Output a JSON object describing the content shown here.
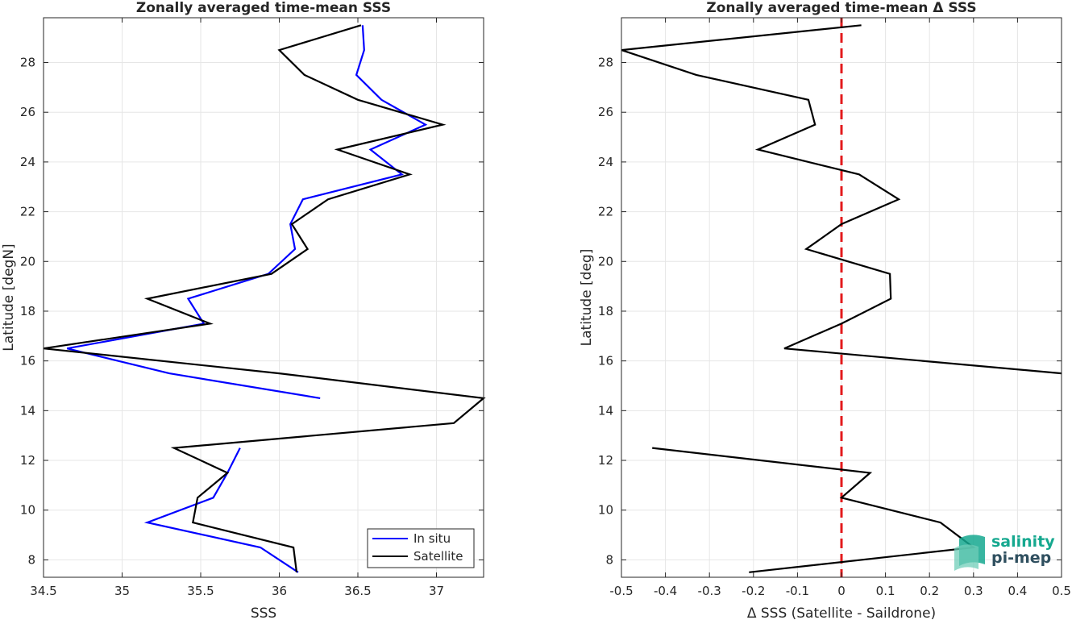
{
  "chart_data": [
    {
      "type": "line",
      "title": "Zonally averaged time-mean SSS",
      "xlabel": "SSS",
      "ylabel": "Latitude [degN]",
      "xlim": [
        34.5,
        37.3
      ],
      "ylim": [
        7.3,
        29.8
      ],
      "xticks": [
        "34.5",
        "35",
        "35.5",
        "36",
        "36.5",
        "37"
      ],
      "yticks": [
        "8",
        "10",
        "12",
        "14",
        "16",
        "18",
        "20",
        "22",
        "24",
        "26",
        "28"
      ],
      "grid": true,
      "legend_position": "bottom-right",
      "series": [
        {
          "name": "In situ",
          "color": "#0000ff",
          "points": [
            [
              36.53,
              29.5
            ],
            [
              36.54,
              28.5
            ],
            [
              36.49,
              27.5
            ],
            [
              36.65,
              26.5
            ],
            [
              36.93,
              25.5
            ],
            [
              36.58,
              24.5
            ],
            [
              36.78,
              23.5
            ],
            [
              36.15,
              22.5
            ],
            [
              36.07,
              21.5
            ],
            [
              36.1,
              20.5
            ],
            [
              35.93,
              19.5
            ],
            [
              35.42,
              18.5
            ],
            [
              35.52,
              17.5
            ],
            [
              34.65,
              16.5
            ],
            [
              35.3,
              15.5
            ],
            [
              36.26,
              14.5
            ],
            [
              null,
              null
            ],
            [
              35.75,
              12.5
            ],
            [
              35.67,
              11.5
            ],
            [
              35.58,
              10.5
            ],
            [
              35.16,
              9.5
            ],
            [
              35.88,
              8.5
            ],
            [
              36.12,
              7.5
            ]
          ]
        },
        {
          "name": "Satellite",
          "color": "#000000",
          "points": [
            [
              36.52,
              29.5
            ],
            [
              36.0,
              28.5
            ],
            [
              36.16,
              27.5
            ],
            [
              36.5,
              26.5
            ],
            [
              37.04,
              25.5
            ],
            [
              36.37,
              24.5
            ],
            [
              36.83,
              23.5
            ],
            [
              36.31,
              22.5
            ],
            [
              36.08,
              21.5
            ],
            [
              36.18,
              20.5
            ],
            [
              35.95,
              19.5
            ],
            [
              35.16,
              18.5
            ],
            [
              35.56,
              17.5
            ],
            [
              34.5,
              16.5
            ],
            [
              36.0,
              15.5
            ],
            [
              37.3,
              14.5
            ],
            [
              37.11,
              13.5
            ],
            [
              35.33,
              12.5
            ],
            [
              35.67,
              11.5
            ],
            [
              35.48,
              10.5
            ],
            [
              35.45,
              9.5
            ],
            [
              36.09,
              8.5
            ],
            [
              36.11,
              7.5
            ]
          ]
        }
      ]
    },
    {
      "type": "line",
      "title": "Zonally averaged time-mean Δ SSS",
      "xlabel": "Δ SSS (Satellite - Saildrone)",
      "ylabel": "Latitude [deg]",
      "xlim": [
        -0.5,
        0.5
      ],
      "ylim": [
        7.3,
        29.8
      ],
      "xticks": [
        "-0.5",
        "-0.4",
        "-0.3",
        "-0.2",
        "-0.1",
        "0",
        "0.1",
        "0.2",
        "0.3",
        "0.4",
        "0.5"
      ],
      "yticks": [
        "8",
        "10",
        "12",
        "14",
        "16",
        "18",
        "20",
        "22",
        "24",
        "26",
        "28"
      ],
      "grid": true,
      "reference_line": {
        "x": 0,
        "color": "#e31a1c",
        "style": "dashed"
      },
      "series": [
        {
          "color": "#000000",
          "points": [
            [
              0.045,
              29.5
            ],
            [
              -0.5,
              28.5
            ],
            [
              -0.33,
              27.5
            ],
            [
              -0.075,
              26.5
            ],
            [
              -0.06,
              25.5
            ],
            [
              -0.19,
              24.5
            ],
            [
              0.04,
              23.5
            ],
            [
              0.13,
              22.5
            ],
            [
              0.0,
              21.5
            ],
            [
              -0.08,
              20.5
            ],
            [
              0.11,
              19.5
            ],
            [
              0.112,
              18.5
            ],
            [
              0.0,
              17.5
            ],
            [
              -0.13,
              16.5
            ],
            [
              0.5,
              15.5
            ],
            [
              null,
              null
            ],
            [
              -0.43,
              12.5
            ],
            [
              0.065,
              11.5
            ],
            [
              0.0,
              10.5
            ],
            [
              0.225,
              9.5
            ],
            [
              0.3,
              8.5
            ],
            [
              -0.21,
              7.5
            ]
          ]
        }
      ]
    }
  ],
  "legend": {
    "items": [
      {
        "label": "In situ",
        "color": "#0000ff"
      },
      {
        "label": "Satellite",
        "color": "#000000"
      }
    ]
  },
  "logo": {
    "line1": "salinity",
    "line2": "pi-mep",
    "accent": "#15a88f",
    "dark": "#2f4f5f"
  }
}
